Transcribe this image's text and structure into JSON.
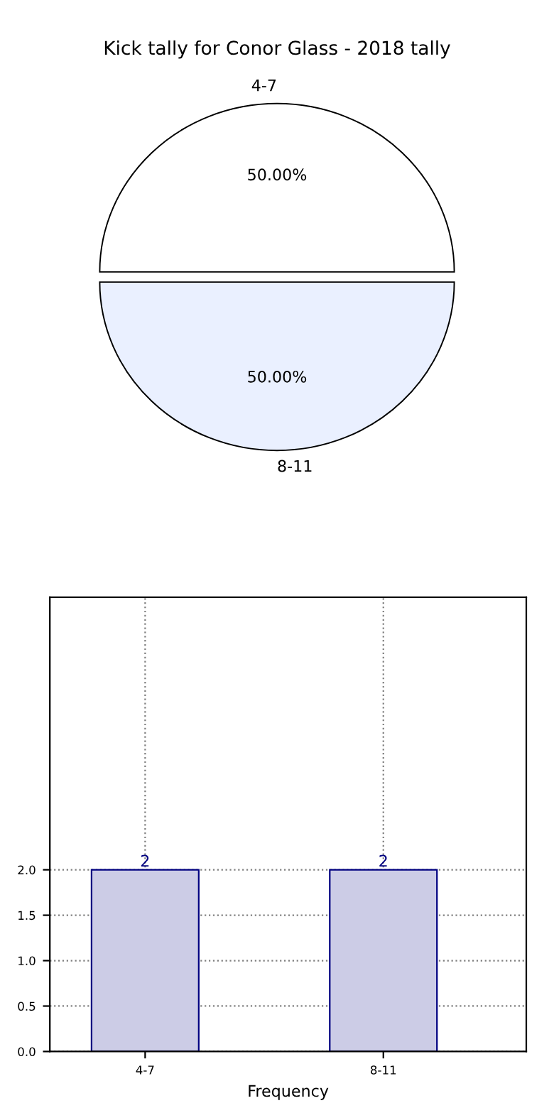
{
  "chart_data": [
    {
      "type": "pie",
      "title": "Kick tally for Conor Glass - 2018 tally",
      "categories": [
        "4-7",
        "8-11"
      ],
      "values": [
        50,
        50
      ],
      "colors": [
        "#ffffff",
        "#eaf0ff"
      ],
      "value_labels": [
        "50.00%",
        "50.00%"
      ]
    },
    {
      "type": "bar",
      "xlabel": "Frequency",
      "categories": [
        "4-7",
        "8-11"
      ],
      "values": [
        2,
        2
      ],
      "color": "#ccccE6",
      "ylim": [
        0,
        5
      ],
      "yticks": [
        {
          "value": 0,
          "label": "0.0"
        },
        {
          "value": 0.5,
          "label": "0.5"
        },
        {
          "value": 1,
          "label": "1.0"
        },
        {
          "value": 1.5,
          "label": "1.5"
        },
        {
          "value": 2,
          "label": "2.0"
        }
      ],
      "grid": true,
      "data_labels": true
    }
  ]
}
